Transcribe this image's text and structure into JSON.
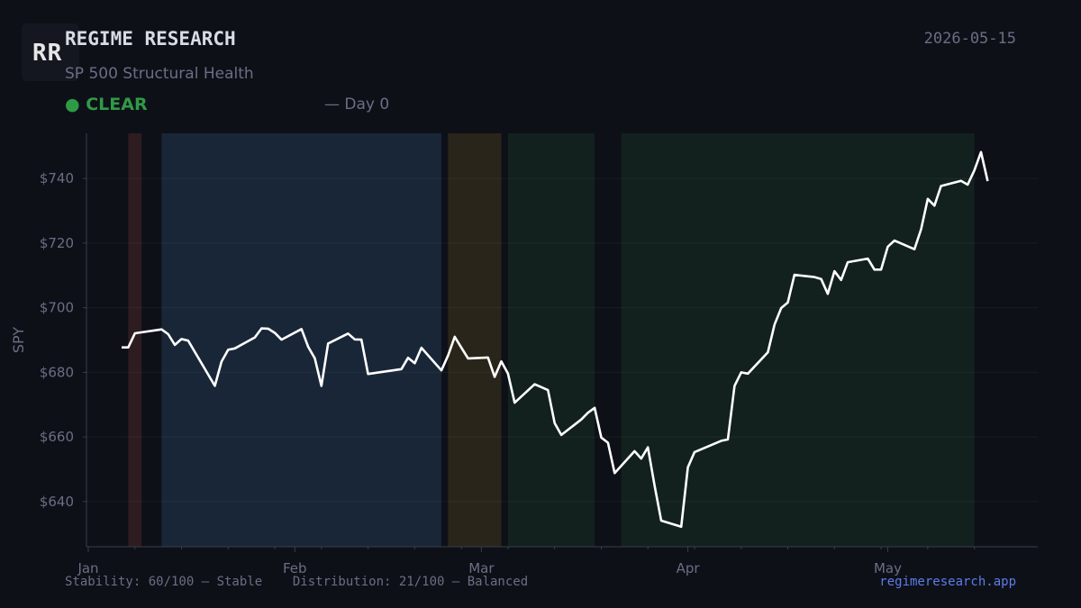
{
  "header": {
    "logo_text": "RR",
    "brand": "REGIME RESEARCH",
    "date": "2026-05-15",
    "subtitle": "SP 500 Structural Health",
    "status_dot": "●",
    "status": "CLEAR",
    "day": "— Day 0"
  },
  "footer": {
    "stats": "Stability: 60/100 — Stable    Distribution: 21/100 — Balanced",
    "site": "regimeresearch.app"
  },
  "colors": {
    "background": "#0e1018",
    "line": "#ffffff",
    "status_clear": "#2f9a46",
    "link": "#5b7de8",
    "regime_red": "#2e1c20",
    "regime_blue": "#192638",
    "regime_amber": "#2a251b",
    "regime_green": "#12211e"
  },
  "chart_data": {
    "type": "line",
    "title": "",
    "xlabel": "",
    "ylabel": "SPY",
    "xlim": [
      "2026-01-01",
      "2026-05-20"
    ],
    "ylim": [
      626,
      754
    ],
    "grid": true,
    "x_ticks": [
      {
        "date": "2026-01-01",
        "label": "Jan"
      },
      {
        "date": "2026-02-01",
        "label": "Feb"
      },
      {
        "date": "2026-03-01",
        "label": "Mar"
      },
      {
        "date": "2026-04-01",
        "label": "Apr"
      },
      {
        "date": "2026-05-01",
        "label": "May"
      }
    ],
    "y_ticks": [
      {
        "value": 640,
        "label": "$640"
      },
      {
        "value": 660,
        "label": "$660"
      },
      {
        "value": 680,
        "label": "$680"
      },
      {
        "value": 700,
        "label": "$700"
      },
      {
        "value": 720,
        "label": "$720"
      },
      {
        "value": 740,
        "label": "$740"
      }
    ],
    "regimes": [
      {
        "start": "2026-01-07",
        "end": "2026-01-09",
        "color": "red"
      },
      {
        "start": "2026-01-12",
        "end": "2026-02-23",
        "color": "blue"
      },
      {
        "start": "2026-02-24",
        "end": "2026-03-04",
        "color": "amber"
      },
      {
        "start": "2026-03-05",
        "end": "2026-03-18",
        "color": "green"
      },
      {
        "start": "2026-03-22",
        "end": "2026-05-14",
        "color": "green"
      }
    ],
    "series": [
      {
        "color": "#ffffff",
        "points": [
          [
            "2026-01-06",
            687.7
          ],
          [
            "2026-01-07",
            687.7
          ],
          [
            "2026-01-08",
            692.1
          ],
          [
            "2026-01-12",
            693.3
          ],
          [
            "2026-01-13",
            691.8
          ],
          [
            "2026-01-14",
            688.5
          ],
          [
            "2026-01-15",
            690.3
          ],
          [
            "2026-01-16",
            689.8
          ],
          [
            "2026-01-20",
            675.8
          ],
          [
            "2026-01-21",
            683.3
          ],
          [
            "2026-01-22",
            687.0
          ],
          [
            "2026-01-23",
            687.4
          ],
          [
            "2026-01-26",
            690.8
          ],
          [
            "2026-01-27",
            693.6
          ],
          [
            "2026-01-28",
            693.5
          ],
          [
            "2026-01-29",
            692.2
          ],
          [
            "2026-01-30",
            690.1
          ],
          [
            "2026-02-02",
            693.4
          ],
          [
            "2026-02-03",
            687.9
          ],
          [
            "2026-02-04",
            684.3
          ],
          [
            "2026-02-05",
            675.8
          ],
          [
            "2026-02-06",
            688.9
          ],
          [
            "2026-02-09",
            692.0
          ],
          [
            "2026-02-10",
            690.2
          ],
          [
            "2026-02-11",
            690.1
          ],
          [
            "2026-02-12",
            679.5
          ],
          [
            "2026-02-17",
            681.0
          ],
          [
            "2026-02-18",
            684.5
          ],
          [
            "2026-02-19",
            682.8
          ],
          [
            "2026-02-20",
            687.6
          ],
          [
            "2026-02-23",
            680.6
          ],
          [
            "2026-02-24",
            685.2
          ],
          [
            "2026-02-25",
            691.0
          ],
          [
            "2026-02-26",
            687.6
          ],
          [
            "2026-02-27",
            684.3
          ],
          [
            "2026-03-02",
            684.6
          ],
          [
            "2026-03-03",
            678.6
          ],
          [
            "2026-03-04",
            683.4
          ],
          [
            "2026-03-05",
            679.6
          ],
          [
            "2026-03-06",
            670.6
          ],
          [
            "2026-03-09",
            676.3
          ],
          [
            "2026-03-11",
            674.5
          ],
          [
            "2026-03-12",
            664.3
          ],
          [
            "2026-03-13",
            660.6
          ],
          [
            "2026-03-16",
            665.4
          ],
          [
            "2026-03-17",
            667.5
          ],
          [
            "2026-03-18",
            669.0
          ],
          [
            "2026-03-19",
            659.8
          ],
          [
            "2026-03-20",
            658.2
          ],
          [
            "2026-03-21",
            648.8
          ],
          [
            "2026-03-24",
            655.6
          ],
          [
            "2026-03-25",
            653.3
          ],
          [
            "2026-03-26",
            656.8
          ],
          [
            "2026-03-27",
            645.0
          ],
          [
            "2026-03-28",
            634.1
          ],
          [
            "2026-03-31",
            632.2
          ],
          [
            "2026-04-01",
            650.6
          ],
          [
            "2026-04-02",
            655.3
          ],
          [
            "2026-04-06",
            658.8
          ],
          [
            "2026-04-07",
            659.2
          ],
          [
            "2026-04-08",
            675.8
          ],
          [
            "2026-04-09",
            680.0
          ],
          [
            "2026-04-10",
            679.6
          ],
          [
            "2026-04-13",
            686.2
          ],
          [
            "2026-04-14",
            694.8
          ],
          [
            "2026-04-15",
            699.9
          ],
          [
            "2026-04-16",
            701.6
          ],
          [
            "2026-04-17",
            710.2
          ],
          [
            "2026-04-20",
            709.5
          ],
          [
            "2026-04-21",
            708.9
          ],
          [
            "2026-04-22",
            704.3
          ],
          [
            "2026-04-23",
            711.3
          ],
          [
            "2026-04-24",
            708.6
          ],
          [
            "2026-04-25",
            714.1
          ],
          [
            "2026-04-28",
            715.2
          ],
          [
            "2026-04-29",
            711.8
          ],
          [
            "2026-04-30",
            711.8
          ],
          [
            "2026-05-01",
            718.9
          ],
          [
            "2026-05-02",
            720.8
          ],
          [
            "2026-05-05",
            718.1
          ],
          [
            "2026-05-06",
            724.3
          ],
          [
            "2026-05-07",
            733.7
          ],
          [
            "2026-05-08",
            731.6
          ],
          [
            "2026-05-09",
            737.7
          ],
          [
            "2026-05-12",
            739.3
          ],
          [
            "2026-05-13",
            738.1
          ],
          [
            "2026-05-14",
            742.5
          ],
          [
            "2026-05-15",
            748.2
          ],
          [
            "2026-05-16",
            739.2
          ]
        ]
      }
    ]
  }
}
